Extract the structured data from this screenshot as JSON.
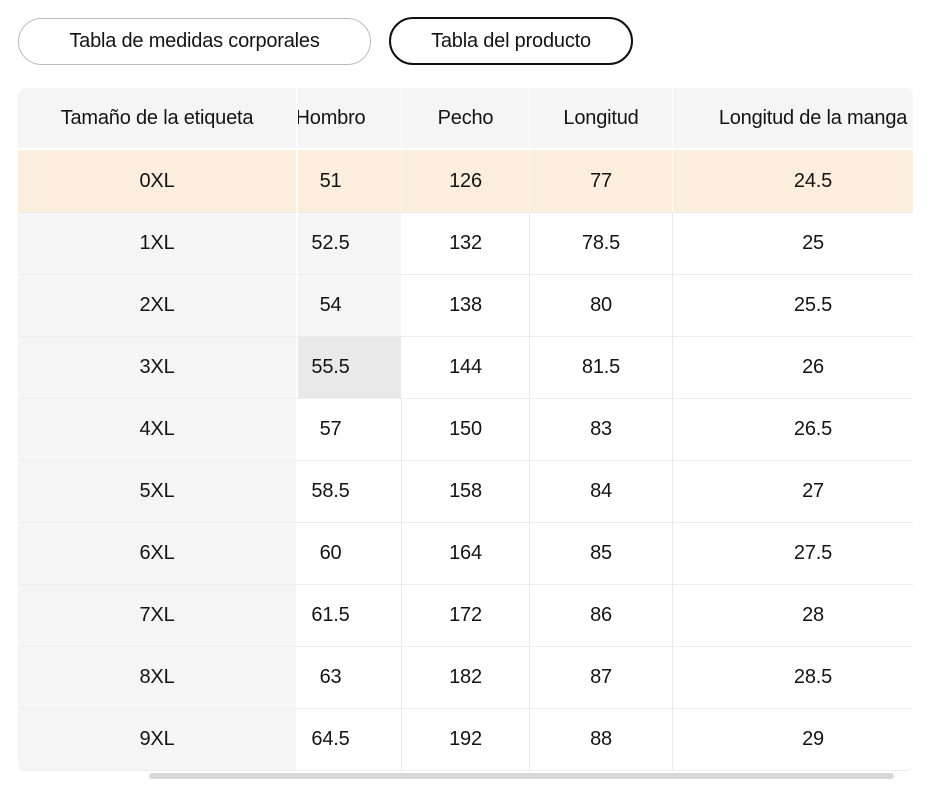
{
  "tabs": {
    "items": [
      {
        "label": "Tabla de medidas corporales",
        "selected": false
      },
      {
        "label": "Tabla del producto",
        "selected": true
      }
    ]
  },
  "size_chart": {
    "columns": [
      "Tamaño de la etiqueta",
      "Hombro",
      "Pecho",
      "Longitud",
      "Longitud de la manga"
    ],
    "rows": [
      {
        "size": "0XL",
        "values": [
          "51",
          "126",
          "77",
          "24.5"
        ],
        "state": "selected",
        "hombro_highlight": "none"
      },
      {
        "size": "1XL",
        "values": [
          "52.5",
          "132",
          "78.5",
          "25"
        ],
        "state": "none",
        "hombro_highlight": "trace"
      },
      {
        "size": "2XL",
        "values": [
          "54",
          "138",
          "80",
          "25.5"
        ],
        "state": "none",
        "hombro_highlight": "trace"
      },
      {
        "size": "3XL",
        "values": [
          "55.5",
          "144",
          "81.5",
          "26"
        ],
        "state": "none",
        "hombro_highlight": "active"
      },
      {
        "size": "4XL",
        "values": [
          "57",
          "150",
          "83",
          "26.5"
        ],
        "state": "none",
        "hombro_highlight": "none"
      },
      {
        "size": "5XL",
        "values": [
          "58.5",
          "158",
          "84",
          "27"
        ],
        "state": "none",
        "hombro_highlight": "none"
      },
      {
        "size": "6XL",
        "values": [
          "60",
          "164",
          "85",
          "27.5"
        ],
        "state": "none",
        "hombro_highlight": "none"
      },
      {
        "size": "7XL",
        "values": [
          "61.5",
          "172",
          "86",
          "28"
        ],
        "state": "none",
        "hombro_highlight": "none"
      },
      {
        "size": "8XL",
        "values": [
          "63",
          "182",
          "87",
          "28.5"
        ],
        "state": "none",
        "hombro_highlight": "none"
      },
      {
        "size": "9XL",
        "values": [
          "64.5",
          "192",
          "88",
          "29"
        ],
        "state": "none",
        "hombro_highlight": "none"
      }
    ]
  },
  "colors": {
    "selected_row_bg": "#fbeedd",
    "header_bg": "#f5f5f6",
    "active_cell_bg": "#e9e9e9",
    "scrollbar_thumb": "#d8d8d8",
    "selected_tab_border": "#101010",
    "tab_border": "#bcbcbc",
    "text": "#141414"
  }
}
